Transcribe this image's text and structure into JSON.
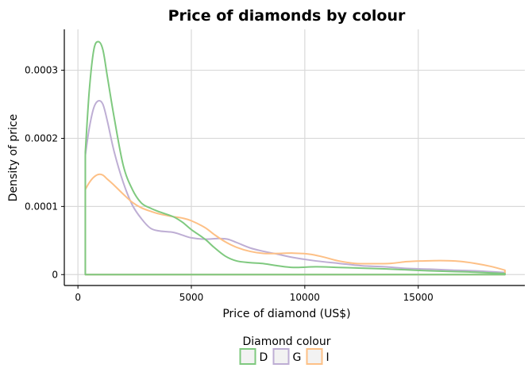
{
  "chart_data": {
    "type": "line",
    "title": "Price of diamonds by colour",
    "xlabel": "Price of diamond (US$)",
    "ylabel": "Density of price",
    "xlim": [
      -600,
      19700
    ],
    "ylim": [
      -1.6e-05,
      0.00036
    ],
    "x_ticks": [
      0,
      5000,
      10000,
      15000
    ],
    "x_tick_labels": [
      "0",
      "5000",
      "10000",
      "15000"
    ],
    "y_ticks": [
      0,
      0.0001,
      0.0002,
      0.0003
    ],
    "y_tick_labels": [
      "0",
      "0.0001",
      "0.0002",
      "0.0003"
    ],
    "grid": true,
    "legend": {
      "title": "Diamond colour",
      "placement": "bottom"
    },
    "x_min": 326,
    "x_max": 18823,
    "series": [
      {
        "name": "D",
        "color": "#7fc97f",
        "points": [
          [
            326,
            0.00018
          ],
          [
            500,
            0.00027
          ],
          [
            700,
            0.00033
          ],
          [
            900,
            0.000342
          ],
          [
            1100,
            0.00033
          ],
          [
            1300,
            0.00029
          ],
          [
            1600,
            0.00023
          ],
          [
            2000,
            0.00016
          ],
          [
            2400,
            0.000125
          ],
          [
            2800,
            0.000105
          ],
          [
            3200,
            9.75e-05
          ],
          [
            3600,
            9.2e-05
          ],
          [
            4200,
            8.5e-05
          ],
          [
            4600,
            7.7e-05
          ],
          [
            5000,
            6.6e-05
          ],
          [
            5600,
            5.2e-05
          ],
          [
            6000,
            4e-05
          ],
          [
            6500,
            2.7e-05
          ],
          [
            7000,
            2e-05
          ],
          [
            7600,
            1.75e-05
          ],
          [
            8200,
            1.6e-05
          ],
          [
            8800,
            1.3e-05
          ],
          [
            9500,
            1.05e-05
          ],
          [
            10500,
            1.15e-05
          ],
          [
            11500,
            1.05e-05
          ],
          [
            12500,
            9.5e-06
          ],
          [
            13500,
            8.5e-06
          ],
          [
            14500,
            7e-06
          ],
          [
            15500,
            5.5e-06
          ],
          [
            16500,
            4.5e-06
          ],
          [
            17500,
            3.5e-06
          ],
          [
            18823,
            1.5e-06
          ]
        ]
      },
      {
        "name": "G",
        "color": "#beaed4",
        "points": [
          [
            326,
            0.000175
          ],
          [
            500,
            0.000215
          ],
          [
            700,
            0.000245
          ],
          [
            900,
            0.000255
          ],
          [
            1100,
            0.00025
          ],
          [
            1300,
            0.000225
          ],
          [
            1600,
            0.00018
          ],
          [
            2000,
            0.000135
          ],
          [
            2400,
            0.000102
          ],
          [
            2800,
            8.2e-05
          ],
          [
            3200,
            6.8e-05
          ],
          [
            3600,
            6.4e-05
          ],
          [
            4200,
            6.2e-05
          ],
          [
            4600,
            5.8e-05
          ],
          [
            5000,
            5.4e-05
          ],
          [
            5600,
            5.2e-05
          ],
          [
            6200,
            5.3e-05
          ],
          [
            6600,
            5.2e-05
          ],
          [
            7000,
            4.7e-05
          ],
          [
            7600,
            3.9e-05
          ],
          [
            8200,
            3.4e-05
          ],
          [
            8800,
            3e-05
          ],
          [
            9500,
            2.5e-05
          ],
          [
            10500,
            2e-05
          ],
          [
            11500,
            1.65e-05
          ],
          [
            12500,
            1.3e-05
          ],
          [
            13500,
            1.15e-05
          ],
          [
            14500,
            9e-06
          ],
          [
            15500,
            8e-06
          ],
          [
            16500,
            6.5e-06
          ],
          [
            17500,
            5.5e-06
          ],
          [
            18823,
            3e-06
          ]
        ]
      },
      {
        "name": "I",
        "color": "#fdc086",
        "points": [
          [
            326,
            0.000125
          ],
          [
            500,
            0.000135
          ],
          [
            700,
            0.000143
          ],
          [
            900,
            0.000147
          ],
          [
            1100,
            0.000146
          ],
          [
            1300,
            0.00014
          ],
          [
            1600,
            0.000131
          ],
          [
            2000,
            0.000118
          ],
          [
            2400,
            0.000106
          ],
          [
            2800,
            9.8e-05
          ],
          [
            3200,
            9.3e-05
          ],
          [
            3600,
            8.9e-05
          ],
          [
            4200,
            8.5e-05
          ],
          [
            4600,
            8.3e-05
          ],
          [
            5000,
            7.9e-05
          ],
          [
            5600,
            6.9e-05
          ],
          [
            6000,
            5.9e-05
          ],
          [
            6500,
            4.8e-05
          ],
          [
            7000,
            4e-05
          ],
          [
            7600,
            3.4e-05
          ],
          [
            8200,
            3.1e-05
          ],
          [
            8800,
            3.1e-05
          ],
          [
            9500,
            3.15e-05
          ],
          [
            10200,
            3e-05
          ],
          [
            10800,
            2.6e-05
          ],
          [
            11500,
            2e-05
          ],
          [
            12200,
            1.65e-05
          ],
          [
            13000,
            1.6e-05
          ],
          [
            13800,
            1.65e-05
          ],
          [
            14500,
            1.9e-05
          ],
          [
            15200,
            2e-05
          ],
          [
            16000,
            2.05e-05
          ],
          [
            16800,
            1.95e-05
          ],
          [
            17500,
            1.65e-05
          ],
          [
            18200,
            1.2e-05
          ],
          [
            18823,
            6.5e-06
          ]
        ]
      }
    ]
  }
}
